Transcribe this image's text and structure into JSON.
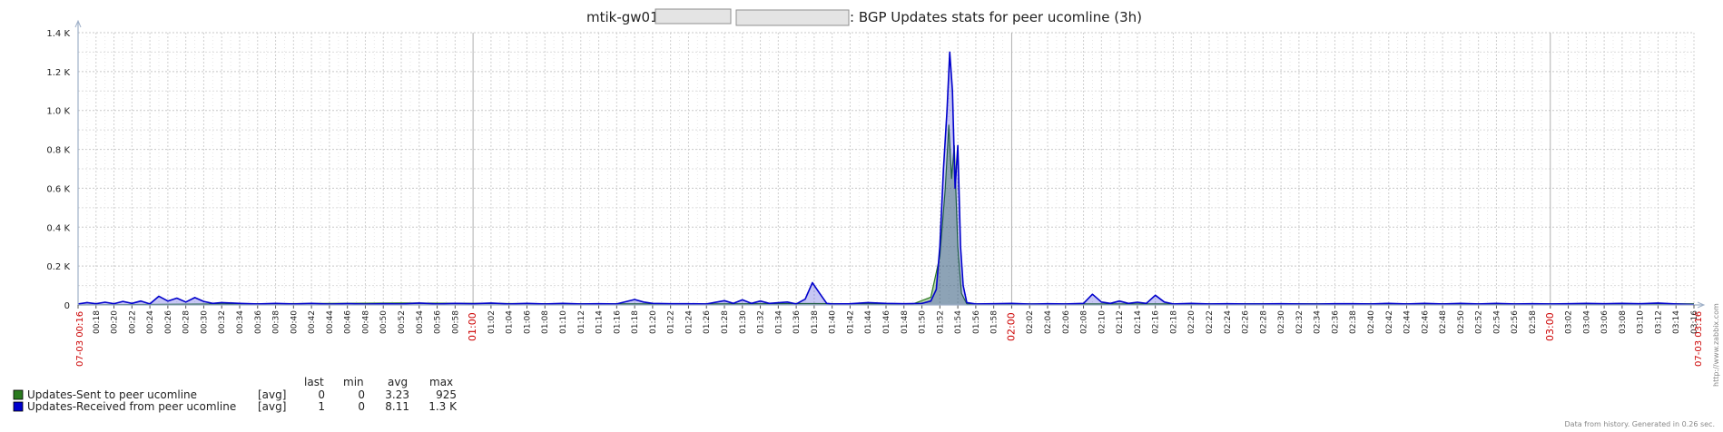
{
  "title": {
    "prefix": "mtik-gw01",
    "suffix": ": BGP Updates stats for peer ucomline (3h)"
  },
  "side_credit": "http://www.zabbix.com",
  "footer_note": "Data from history. Generated in 0.26 sec.",
  "legend": {
    "headers": [
      "last",
      "min",
      "avg",
      "max"
    ],
    "rows": [
      {
        "name": "Updates-Sent to peer ucomline",
        "func": "[avg]",
        "last": "0",
        "min": "0",
        "avg": "3.23",
        "max": "925",
        "color": "#2a7a1e"
      },
      {
        "name": "Updates-Received from peer ucomline",
        "func": "[avg]",
        "last": "1",
        "min": "0",
        "avg": "8.11",
        "max": "1.3 K",
        "color": "#0000cc"
      }
    ]
  },
  "chart_data": {
    "type": "line",
    "x_start_label": "07-03 00:16",
    "x_end_label": "07-03 03:16",
    "ylim": [
      0,
      1400
    ],
    "yticks": [
      "0",
      "0.2 K",
      "0.4 K",
      "0.6 K",
      "0.8 K",
      "1.0 K",
      "1.2 K",
      "1.4 K"
    ],
    "grid": true,
    "xticks": [
      "00:18",
      "00:20",
      "00:22",
      "00:24",
      "00:26",
      "00:28",
      "00:30",
      "00:32",
      "00:34",
      "00:36",
      "00:38",
      "00:40",
      "00:42",
      "00:44",
      "00:46",
      "00:48",
      "00:50",
      "00:52",
      "00:54",
      "00:56",
      "00:58",
      "01:00",
      "01:02",
      "01:04",
      "01:06",
      "01:08",
      "01:10",
      "01:12",
      "01:14",
      "01:16",
      "01:18",
      "01:20",
      "01:22",
      "01:24",
      "01:26",
      "01:28",
      "01:30",
      "01:32",
      "01:34",
      "01:36",
      "01:38",
      "01:40",
      "01:42",
      "01:44",
      "01:46",
      "01:48",
      "01:50",
      "01:52",
      "01:54",
      "01:56",
      "01:58",
      "02:00",
      "02:02",
      "02:04",
      "02:06",
      "02:08",
      "02:10",
      "02:12",
      "02:14",
      "02:16",
      "02:18",
      "02:20",
      "02:22",
      "02:24",
      "02:26",
      "02:28",
      "02:30",
      "02:32",
      "02:34",
      "02:36",
      "02:38",
      "02:40",
      "02:42",
      "02:44",
      "02:46",
      "02:48",
      "02:50",
      "02:52",
      "02:54",
      "02:56",
      "02:58",
      "03:00",
      "03:02",
      "03:04",
      "03:06",
      "03:08",
      "03:10",
      "03:12",
      "03:14",
      "03:16"
    ],
    "major_xticks": [
      "01:00",
      "02:00",
      "03:00"
    ],
    "series": [
      {
        "name": "Updates-Sent to peer ucomline",
        "color": "#2a7a1e",
        "points": [
          [
            0,
            0
          ],
          [
            20,
            6
          ],
          [
            36,
            10
          ],
          [
            54,
            6
          ],
          [
            70,
            5
          ],
          [
            81,
            7
          ],
          [
            93,
            5
          ],
          [
            95,
            40
          ],
          [
            96,
            250
          ],
          [
            96.6,
            600
          ],
          [
            97,
            925
          ],
          [
            97.3,
            650
          ],
          [
            97.6,
            820
          ],
          [
            98,
            300
          ],
          [
            98.4,
            60
          ],
          [
            99,
            5
          ],
          [
            120,
            5
          ],
          [
            140,
            6
          ],
          [
            160,
            5
          ],
          [
            180,
            6
          ]
        ]
      },
      {
        "name": "Updates-Received from peer ucomline",
        "color": "#0000cc",
        "points": [
          [
            0,
            5
          ],
          [
            1,
            12
          ],
          [
            2,
            6
          ],
          [
            3,
            14
          ],
          [
            4,
            6
          ],
          [
            5,
            18
          ],
          [
            6,
            8
          ],
          [
            7,
            20
          ],
          [
            8,
            5
          ],
          [
            9,
            45
          ],
          [
            10,
            20
          ],
          [
            11,
            35
          ],
          [
            12,
            15
          ],
          [
            13,
            38
          ],
          [
            14,
            18
          ],
          [
            15,
            8
          ],
          [
            16,
            12
          ],
          [
            18,
            8
          ],
          [
            20,
            5
          ],
          [
            22,
            8
          ],
          [
            24,
            5
          ],
          [
            26,
            8
          ],
          [
            28,
            4
          ],
          [
            30,
            7
          ],
          [
            32,
            4
          ],
          [
            34,
            6
          ],
          [
            36,
            5
          ],
          [
            38,
            10
          ],
          [
            40,
            5
          ],
          [
            42,
            8
          ],
          [
            44,
            6
          ],
          [
            46,
            10
          ],
          [
            48,
            5
          ],
          [
            50,
            8
          ],
          [
            52,
            5
          ],
          [
            54,
            8
          ],
          [
            56,
            5
          ],
          [
            58,
            6
          ],
          [
            60,
            5
          ],
          [
            62,
            28
          ],
          [
            63,
            15
          ],
          [
            64,
            8
          ],
          [
            66,
            6
          ],
          [
            68,
            6
          ],
          [
            70,
            5
          ],
          [
            72,
            22
          ],
          [
            73,
            8
          ],
          [
            74,
            26
          ],
          [
            75,
            8
          ],
          [
            76,
            20
          ],
          [
            77,
            8
          ],
          [
            79,
            15
          ],
          [
            80,
            5
          ],
          [
            81,
            30
          ],
          [
            81.8,
            115
          ],
          [
            82.6,
            60
          ],
          [
            83.4,
            8
          ],
          [
            84,
            5
          ],
          [
            86,
            6
          ],
          [
            88,
            12
          ],
          [
            90,
            8
          ],
          [
            92,
            6
          ],
          [
            94,
            8
          ],
          [
            95,
            20
          ],
          [
            95.6,
            80
          ],
          [
            96,
            300
          ],
          [
            96.4,
            700
          ],
          [
            96.8,
            1000
          ],
          [
            97.1,
            1300
          ],
          [
            97.4,
            1100
          ],
          [
            97.7,
            600
          ],
          [
            98,
            820
          ],
          [
            98.3,
            300
          ],
          [
            98.6,
            100
          ],
          [
            99,
            12
          ],
          [
            100,
            5
          ],
          [
            102,
            6
          ],
          [
            104,
            8
          ],
          [
            106,
            4
          ],
          [
            108,
            6
          ],
          [
            110,
            5
          ],
          [
            112,
            8
          ],
          [
            113,
            55
          ],
          [
            114,
            15
          ],
          [
            115,
            8
          ],
          [
            116,
            20
          ],
          [
            117,
            8
          ],
          [
            118,
            14
          ],
          [
            119,
            8
          ],
          [
            120,
            50
          ],
          [
            121,
            15
          ],
          [
            122,
            5
          ],
          [
            124,
            8
          ],
          [
            126,
            5
          ],
          [
            128,
            6
          ],
          [
            130,
            5
          ],
          [
            132,
            5
          ],
          [
            134,
            6
          ],
          [
            136,
            5
          ],
          [
            138,
            4
          ],
          [
            140,
            6
          ],
          [
            142,
            6
          ],
          [
            144,
            5
          ],
          [
            146,
            8
          ],
          [
            148,
            5
          ],
          [
            150,
            8
          ],
          [
            152,
            5
          ],
          [
            154,
            8
          ],
          [
            156,
            5
          ],
          [
            158,
            8
          ],
          [
            160,
            5
          ],
          [
            162,
            6
          ],
          [
            164,
            5
          ],
          [
            166,
            6
          ],
          [
            168,
            8
          ],
          [
            170,
            6
          ],
          [
            172,
            8
          ],
          [
            174,
            6
          ],
          [
            176,
            10
          ],
          [
            178,
            5
          ],
          [
            180,
            2
          ]
        ]
      }
    ]
  }
}
